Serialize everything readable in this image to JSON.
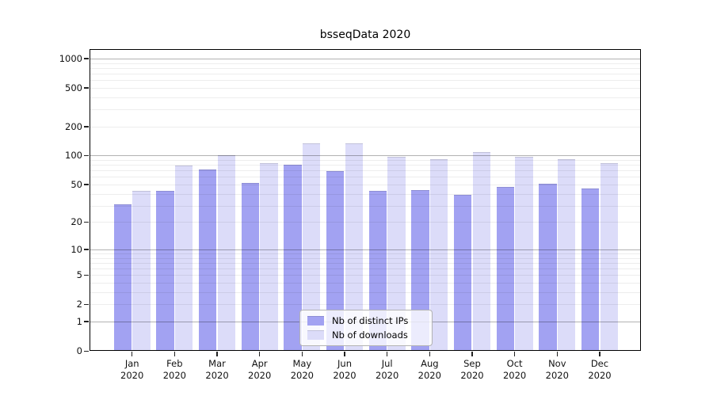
{
  "title": "bsseqData 2020",
  "colors": {
    "bar_dark": "#a2a2f2",
    "bar_light": "#dcdcf9",
    "bar_edge": "rgba(0,0,0,0.12)",
    "grid_major": "rgba(0,0,0,0.30)",
    "grid_minor": "rgba(0,0,0,0.07)",
    "spine": "#000000"
  },
  "y_axis": {
    "tick_values": [
      0,
      1,
      2,
      5,
      10,
      20,
      50,
      100,
      200,
      500,
      1000
    ],
    "major_grid_values": [
      1,
      10,
      100,
      1000
    ],
    "minor_grid_values": [
      2,
      3,
      4,
      5,
      6,
      7,
      8,
      9,
      20,
      30,
      40,
      50,
      60,
      70,
      80,
      90,
      200,
      300,
      400,
      500,
      600,
      700,
      800,
      900
    ]
  },
  "x_axis": {
    "months": [
      "Jan",
      "Feb",
      "Mar",
      "Apr",
      "May",
      "Jun",
      "Jul",
      "Aug",
      "Sep",
      "Oct",
      "Nov",
      "Dec"
    ],
    "year": "2020"
  },
  "chart_data": {
    "type": "bar",
    "yscale": "log1p",
    "title": "bsseqData 2020",
    "categories": [
      "Jan 2020",
      "Feb 2020",
      "Mar 2020",
      "Apr 2020",
      "May 2020",
      "Jun 2020",
      "Jul 2020",
      "Aug 2020",
      "Sep 2020",
      "Oct 2020",
      "Nov 2020",
      "Dec 2020"
    ],
    "series": [
      {
        "name": "Nb of distinct IPs",
        "color": "#a2a2f2",
        "values": [
          31,
          43,
          72,
          52,
          81,
          69,
          43,
          44,
          39,
          47,
          51,
          45
        ]
      },
      {
        "name": "Nb of downloads",
        "color": "#dcdcf9",
        "values": [
          43,
          79,
          100,
          84,
          135,
          135,
          98,
          92,
          108,
          97,
          91,
          84
        ]
      }
    ],
    "ylim": [
      0,
      1250
    ],
    "grid": true,
    "legend_position": "lower center"
  }
}
